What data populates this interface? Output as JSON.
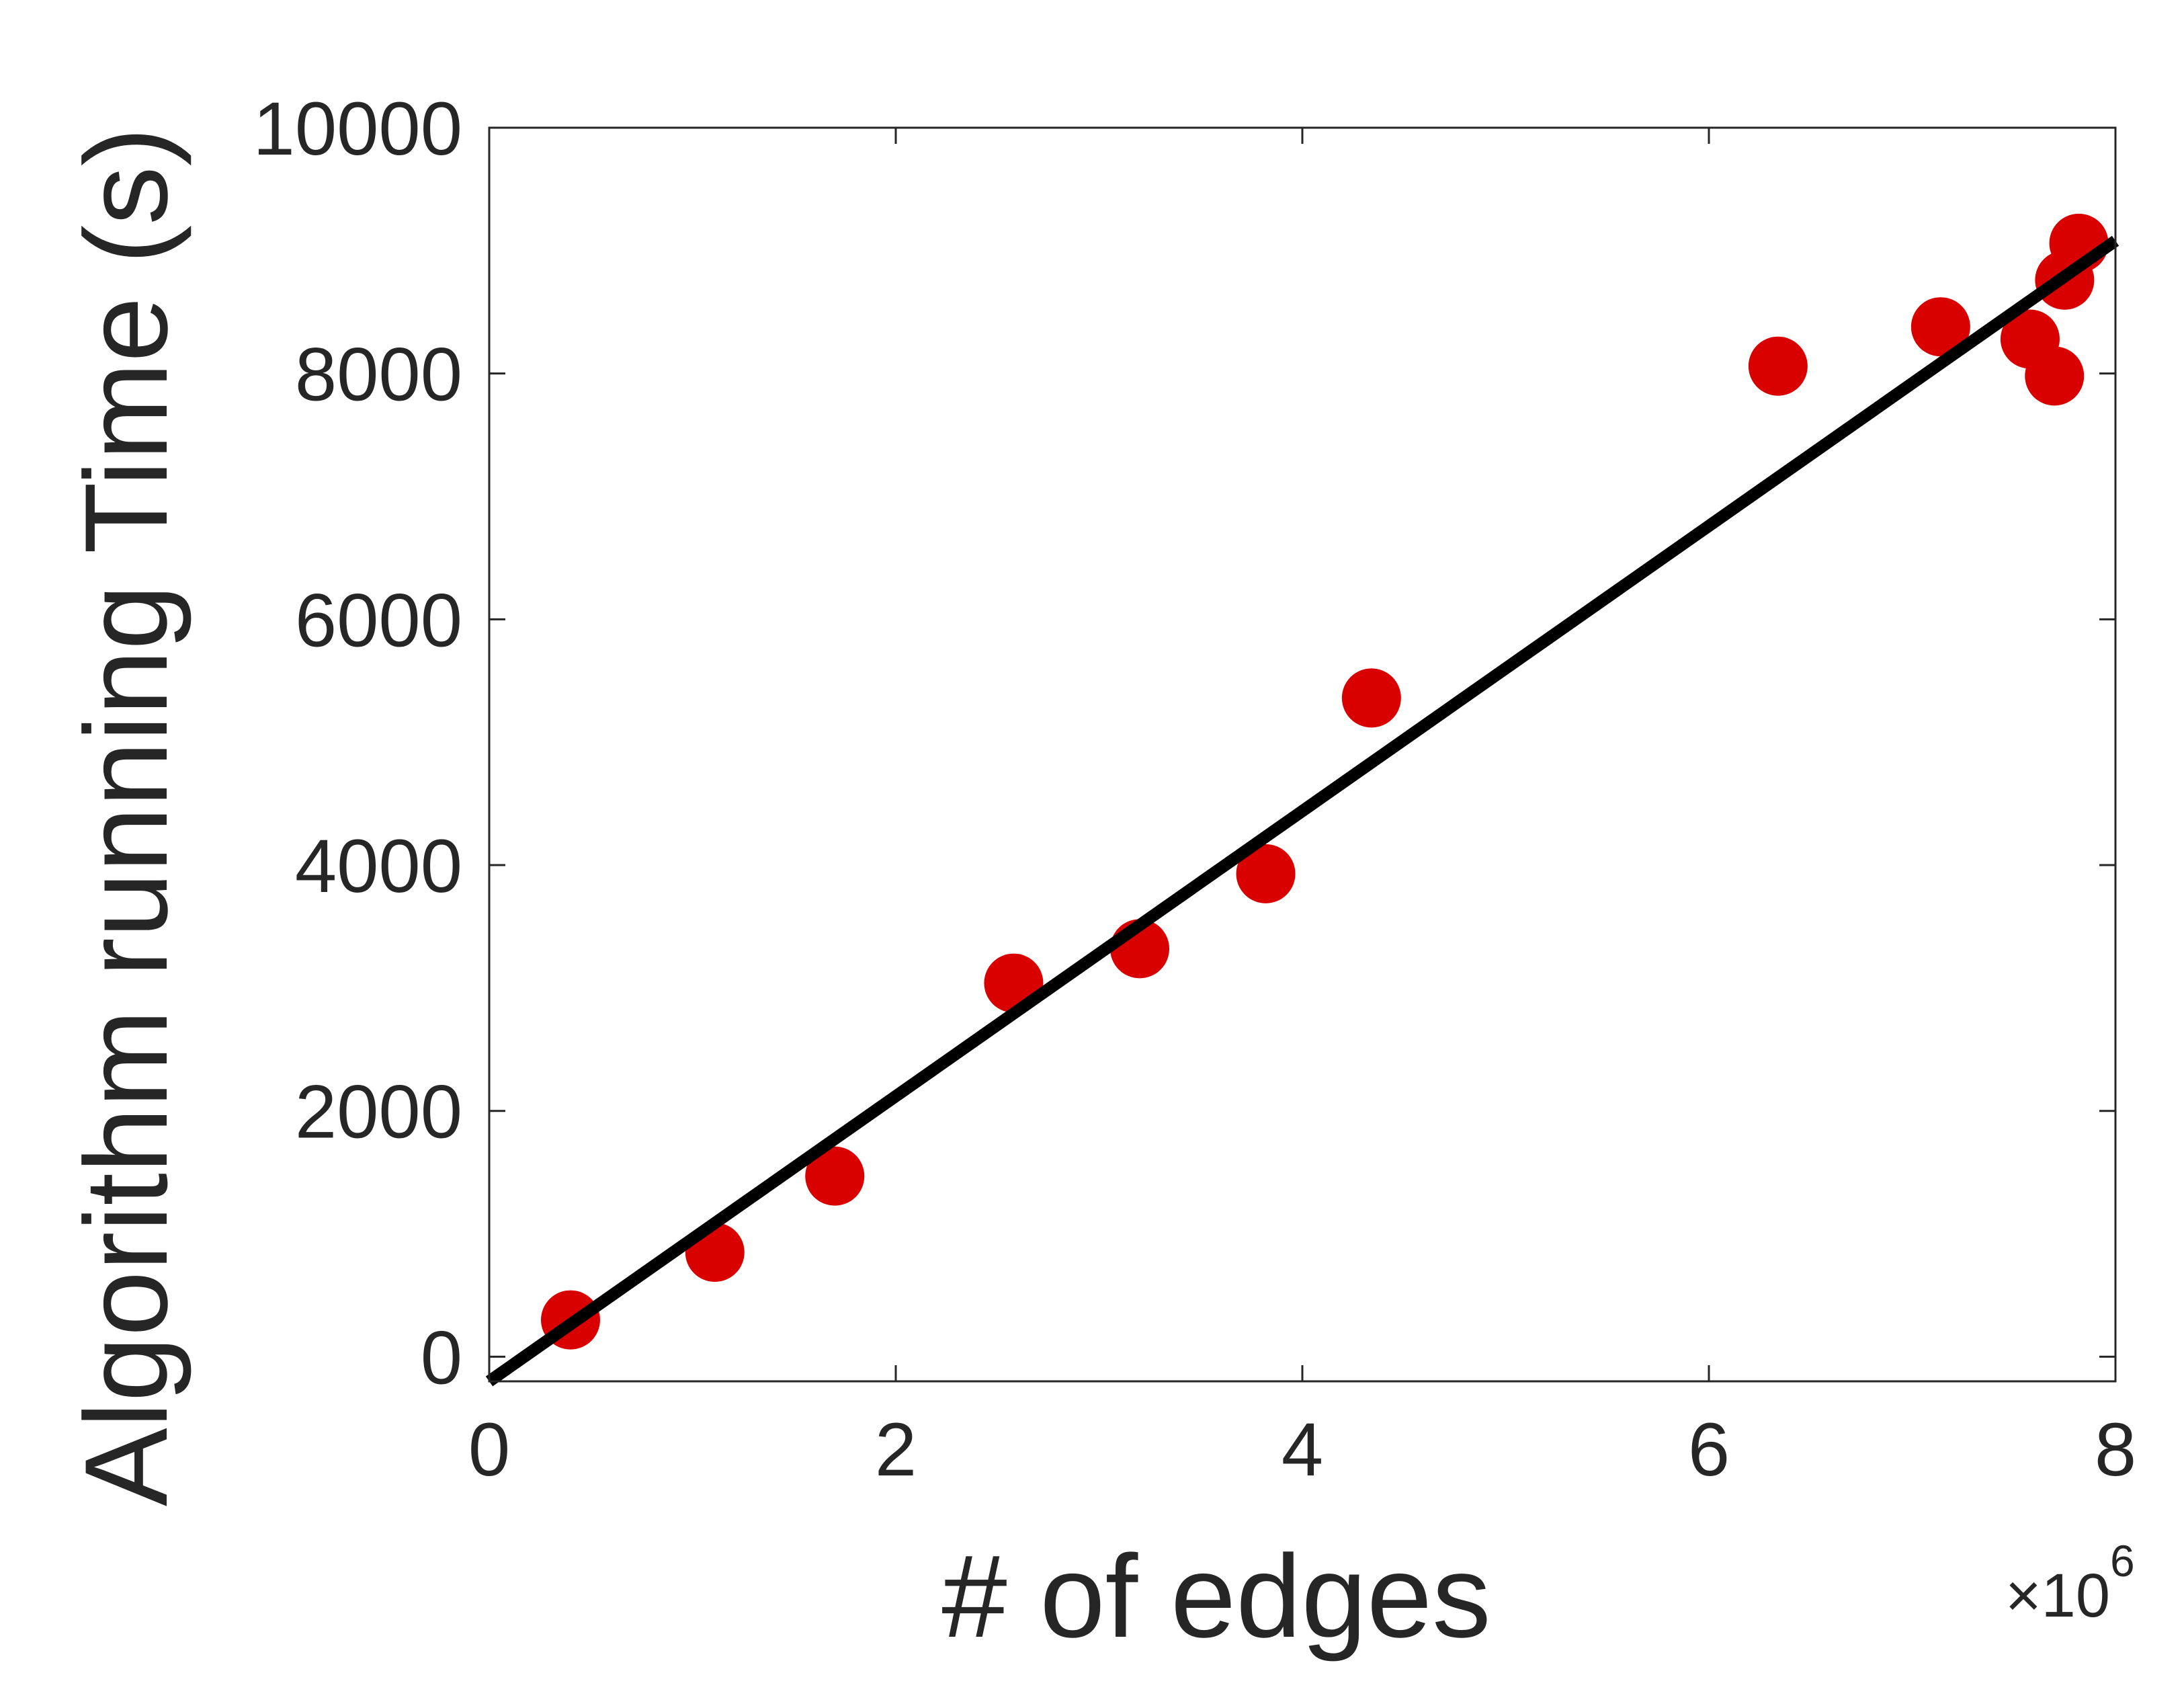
{
  "chart_data": {
    "type": "scatter",
    "title": "",
    "xlabel": "# of edges",
    "ylabel": "Algorithm running Time (s)",
    "x_multiplier_base": "×10",
    "x_multiplier_exponent": "6",
    "xlim": [
      0,
      8000000
    ],
    "ylim": [
      -200,
      10000
    ],
    "x_ticks": [
      0,
      2000000,
      4000000,
      6000000,
      8000000
    ],
    "x_tick_labels": [
      "0",
      "2",
      "4",
      "6",
      "8"
    ],
    "y_ticks": [
      0,
      2000,
      4000,
      6000,
      8000,
      10000
    ],
    "y_tick_labels": [
      "0",
      "2000",
      "4000",
      "6000",
      "8000",
      "10000"
    ],
    "grid": false,
    "colors": {
      "points": "#d90000",
      "fit": "#000000",
      "axes": "#262626"
    },
    "points": [
      {
        "x": 400000,
        "y": 300
      },
      {
        "x": 1110000,
        "y": 850
      },
      {
        "x": 1700000,
        "y": 1470
      },
      {
        "x": 2580000,
        "y": 3040
      },
      {
        "x": 3200000,
        "y": 3320
      },
      {
        "x": 3820000,
        "y": 3930
      },
      {
        "x": 4340000,
        "y": 5360
      },
      {
        "x": 6340000,
        "y": 8060
      },
      {
        "x": 7140000,
        "y": 8380
      },
      {
        "x": 7580000,
        "y": 8280
      },
      {
        "x": 7700000,
        "y": 7980
      },
      {
        "x": 7750000,
        "y": 8760
      },
      {
        "x": 7820000,
        "y": 9060
      }
    ],
    "fit_line": {
      "x": [
        0,
        8000000
      ],
      "y": [
        -200,
        9080
      ]
    }
  }
}
